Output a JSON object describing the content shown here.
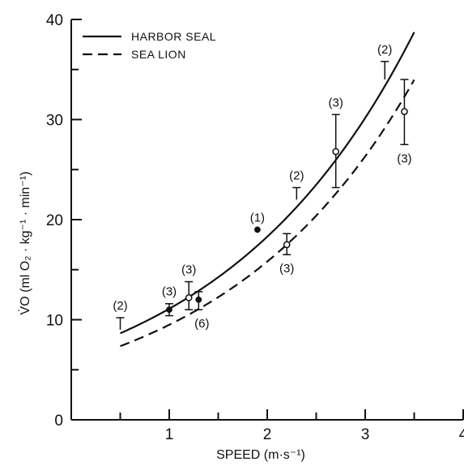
{
  "chart_data": {
    "type": "line",
    "title": "",
    "xlabel": "SPEED (m·s⁻¹)",
    "ylabel": "V̇O (ml O₂ · kg⁻¹ · min⁻¹)",
    "xlim": [
      0,
      4
    ],
    "ylim": [
      0,
      40
    ],
    "xticks": [
      1,
      2,
      3,
      4
    ],
    "xtick_labels": [
      "1",
      "2",
      "3",
      "4"
    ],
    "yticks": [
      0,
      10,
      20,
      30,
      40
    ],
    "ytick_labels": [
      "0",
      "10",
      "20",
      "30",
      "40"
    ],
    "minor_ticks_x": [
      0.5,
      1.5,
      2.5,
      3.5
    ],
    "minor_ticks_y": [
      5,
      15,
      25,
      35
    ],
    "grid": false,
    "legend_position": "top-left",
    "series": [
      {
        "name": "HARBOR SEAL",
        "style": "solid",
        "fit": {
          "a": 6.73,
          "b": 0.5,
          "x_range": [
            0.5,
            3.5
          ]
        },
        "points": [
          {
            "x": 0.5,
            "y": 9.0,
            "err_low": 9.0,
            "err_high": 10.2,
            "marker": "none",
            "label": "(2)",
            "label_pos": "above"
          },
          {
            "x": 1.0,
            "y": 11.0,
            "err_low": 10.4,
            "err_high": 11.6,
            "marker": "filled",
            "label": "(3)",
            "label_pos": "above"
          },
          {
            "x": 1.3,
            "y": 12.0,
            "err_low": 11.0,
            "err_high": 12.8,
            "marker": "filled",
            "label": "(6)",
            "label_pos": "below"
          },
          {
            "x": 1.9,
            "y": 19.0,
            "err_low": 19.0,
            "err_high": 19.0,
            "marker": "filled",
            "label": "(1)",
            "label_pos": "above"
          },
          {
            "x": 2.3,
            "y": 22.0,
            "err_low": 22.0,
            "err_high": 23.2,
            "marker": "none",
            "label": "(2)",
            "label_pos": "above"
          },
          {
            "x": 3.2,
            "y": 34.0,
            "err_low": 34.0,
            "err_high": 35.8,
            "marker": "none",
            "label": "(2)",
            "label_pos": "above"
          }
        ]
      },
      {
        "name": "SEA LION",
        "style": "dashed",
        "fit": {
          "a": 5.7,
          "b": 0.51,
          "x_range": [
            0.5,
            3.5
          ]
        },
        "points": [
          {
            "x": 1.2,
            "y": 12.2,
            "err_low": 11.0,
            "err_high": 13.8,
            "marker": "open",
            "label": "(3)",
            "label_pos": "above"
          },
          {
            "x": 2.2,
            "y": 17.5,
            "err_low": 16.5,
            "err_high": 18.6,
            "marker": "open",
            "label": "(3)",
            "label_pos": "below"
          },
          {
            "x": 2.7,
            "y": 26.8,
            "err_low": 23.2,
            "err_high": 30.5,
            "marker": "open",
            "label": "(3)",
            "label_pos": "above"
          },
          {
            "x": 3.4,
            "y": 30.8,
            "err_low": 27.5,
            "err_high": 34.0,
            "marker": "open",
            "label": "(3)",
            "label_pos": "below"
          }
        ]
      }
    ]
  },
  "colors": {
    "ink": "#111111",
    "background": "#ffffff"
  }
}
